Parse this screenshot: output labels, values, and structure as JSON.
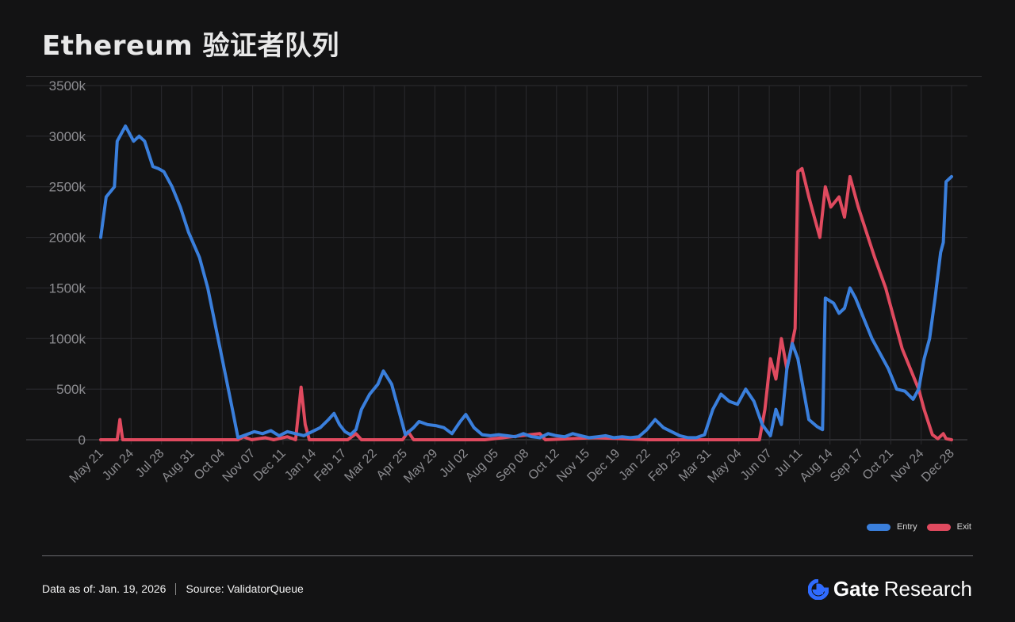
{
  "header": {
    "title": "Ethereum 验证者队列"
  },
  "footer": {
    "data_as_of": "Data as of: Jan. 19, 2026",
    "source": "Source:  ValidatorQueue"
  },
  "brand": {
    "name": "Gate",
    "suffix": "Research",
    "icon": "gate-logo-icon",
    "color": "#2f6bff"
  },
  "chart_data": {
    "type": "line",
    "title": "",
    "xlabel": "",
    "ylabel": "",
    "ylim": [
      0,
      3500
    ],
    "yticks": [
      "0",
      "500k",
      "1000k",
      "1500k",
      "2000k",
      "2500k",
      "3000k",
      "3500k"
    ],
    "categories": [
      "May 21",
      "Jun 24",
      "Jul 28",
      "Aug 31",
      "Oct 04",
      "Nov 07",
      "Dec 11",
      "Jan 14",
      "Feb 17",
      "Mar 22",
      "Apr 25",
      "May 29",
      "Jul 02",
      "Aug 05",
      "Sep 08",
      "Oct 12",
      "Nov 15",
      "Dec 19",
      "Jan 22",
      "Feb 25",
      "Mar 31",
      "May 04",
      "Jun 07",
      "Jul 11",
      "Aug 14",
      "Sep 17",
      "Oct 21",
      "Nov 24",
      "Dec 28"
    ],
    "grid": true,
    "legend": "bottom-right",
    "series": [
      {
        "name": "Entry",
        "color": "#3a7fdc",
        "points": [
          [
            0,
            2000
          ],
          [
            0.2,
            2400
          ],
          [
            0.5,
            2500
          ],
          [
            0.6,
            2950
          ],
          [
            0.9,
            3100
          ],
          [
            1.2,
            2950
          ],
          [
            1.4,
            3000
          ],
          [
            1.6,
            2950
          ],
          [
            1.9,
            2700
          ],
          [
            2.1,
            2680
          ],
          [
            2.3,
            2650
          ],
          [
            2.6,
            2500
          ],
          [
            2.9,
            2300
          ],
          [
            3.2,
            2050
          ],
          [
            3.6,
            1800
          ],
          [
            3.9,
            1500
          ],
          [
            4.2,
            1100
          ],
          [
            4.5,
            700
          ],
          [
            4.8,
            300
          ],
          [
            5.0,
            20
          ],
          [
            5.3,
            50
          ],
          [
            5.6,
            80
          ],
          [
            5.9,
            60
          ],
          [
            6.2,
            90
          ],
          [
            6.5,
            40
          ],
          [
            6.8,
            80
          ],
          [
            7.1,
            60
          ],
          [
            7.4,
            40
          ],
          [
            7.7,
            80
          ],
          [
            8.0,
            120
          ],
          [
            8.3,
            200
          ],
          [
            8.5,
            260
          ],
          [
            8.7,
            150
          ],
          [
            8.9,
            80
          ],
          [
            9.1,
            50
          ],
          [
            9.3,
            100
          ],
          [
            9.5,
            300
          ],
          [
            9.8,
            450
          ],
          [
            10.1,
            550
          ],
          [
            10.3,
            680
          ],
          [
            10.6,
            550
          ],
          [
            10.9,
            250
          ],
          [
            11.1,
            50
          ],
          [
            11.4,
            120
          ],
          [
            11.6,
            180
          ],
          [
            11.9,
            150
          ],
          [
            12.2,
            140
          ],
          [
            12.5,
            120
          ],
          [
            12.8,
            60
          ],
          [
            13.1,
            180
          ],
          [
            13.3,
            250
          ],
          [
            13.6,
            120
          ],
          [
            13.9,
            50
          ],
          [
            14.2,
            40
          ],
          [
            14.5,
            50
          ],
          [
            14.8,
            40
          ],
          [
            15.1,
            30
          ],
          [
            15.4,
            60
          ],
          [
            15.7,
            30
          ],
          [
            16.0,
            20
          ],
          [
            16.3,
            60
          ],
          [
            16.6,
            40
          ],
          [
            16.9,
            30
          ],
          [
            17.2,
            60
          ],
          [
            17.5,
            40
          ],
          [
            17.8,
            20
          ],
          [
            18.1,
            30
          ],
          [
            18.4,
            40
          ],
          [
            18.7,
            20
          ],
          [
            19.0,
            30
          ],
          [
            19.3,
            20
          ],
          [
            19.6,
            30
          ],
          [
            19.9,
            100
          ],
          [
            20.2,
            200
          ],
          [
            20.5,
            120
          ],
          [
            20.8,
            80
          ],
          [
            21.1,
            40
          ],
          [
            21.4,
            20
          ],
          [
            21.7,
            20
          ],
          [
            22.0,
            50
          ],
          [
            22.3,
            300
          ],
          [
            22.6,
            450
          ],
          [
            22.9,
            380
          ],
          [
            23.2,
            350
          ],
          [
            23.5,
            500
          ],
          [
            23.8,
            380
          ],
          [
            24.1,
            150
          ],
          [
            24.4,
            40
          ],
          [
            24.6,
            300
          ],
          [
            24.8,
            150
          ],
          [
            25.0,
            700
          ],
          [
            25.2,
            950
          ],
          [
            25.4,
            800
          ],
          [
            25.6,
            500
          ],
          [
            25.8,
            200
          ],
          [
            26.1,
            130
          ],
          [
            26.3,
            100
          ],
          [
            26.4,
            1400
          ],
          [
            26.7,
            1350
          ],
          [
            26.9,
            1250
          ],
          [
            27.1,
            1300
          ],
          [
            27.3,
            1500
          ],
          [
            27.5,
            1400
          ],
          [
            27.8,
            1200
          ],
          [
            28.1,
            1000
          ],
          [
            28.4,
            850
          ],
          [
            28.7,
            700
          ],
          [
            29.0,
            500
          ],
          [
            29.3,
            480
          ],
          [
            29.6,
            400
          ],
          [
            29.8,
            500
          ],
          [
            30.0,
            800
          ],
          [
            30.2,
            1000
          ],
          [
            30.4,
            1400
          ],
          [
            30.6,
            1850
          ],
          [
            30.7,
            1950
          ],
          [
            30.8,
            2550
          ],
          [
            31.0,
            2600
          ]
        ]
      },
      {
        "name": "Exit",
        "color": "#e04a5f",
        "points": [
          [
            0,
            0
          ],
          [
            0.6,
            0
          ],
          [
            0.7,
            200
          ],
          [
            0.8,
            0
          ],
          [
            3.0,
            0
          ],
          [
            5.0,
            0
          ],
          [
            5.2,
            30
          ],
          [
            5.5,
            0
          ],
          [
            6.0,
            20
          ],
          [
            6.3,
            0
          ],
          [
            6.8,
            30
          ],
          [
            7.1,
            0
          ],
          [
            7.3,
            520
          ],
          [
            7.45,
            150
          ],
          [
            7.6,
            0
          ],
          [
            9.0,
            0
          ],
          [
            9.3,
            60
          ],
          [
            9.5,
            0
          ],
          [
            11.0,
            0
          ],
          [
            11.2,
            80
          ],
          [
            11.4,
            0
          ],
          [
            14.0,
            0
          ],
          [
            16.0,
            60
          ],
          [
            16.2,
            0
          ],
          [
            18.0,
            20
          ],
          [
            20.0,
            0
          ],
          [
            24.0,
            0
          ],
          [
            24.2,
            300
          ],
          [
            24.4,
            800
          ],
          [
            24.6,
            600
          ],
          [
            24.8,
            1000
          ],
          [
            25.0,
            700
          ],
          [
            25.3,
            1100
          ],
          [
            25.4,
            2650
          ],
          [
            25.55,
            2680
          ],
          [
            25.8,
            2400
          ],
          [
            26.0,
            2200
          ],
          [
            26.2,
            2000
          ],
          [
            26.4,
            2500
          ],
          [
            26.6,
            2300
          ],
          [
            26.9,
            2400
          ],
          [
            27.1,
            2200
          ],
          [
            27.3,
            2600
          ],
          [
            27.6,
            2300
          ],
          [
            27.9,
            2050
          ],
          [
            28.2,
            1800
          ],
          [
            28.6,
            1500
          ],
          [
            28.9,
            1200
          ],
          [
            29.2,
            900
          ],
          [
            29.5,
            700
          ],
          [
            29.8,
            500
          ],
          [
            30.0,
            300
          ],
          [
            30.3,
            50
          ],
          [
            30.5,
            10
          ],
          [
            30.7,
            60
          ],
          [
            30.8,
            10
          ],
          [
            31.0,
            0
          ]
        ]
      }
    ]
  }
}
